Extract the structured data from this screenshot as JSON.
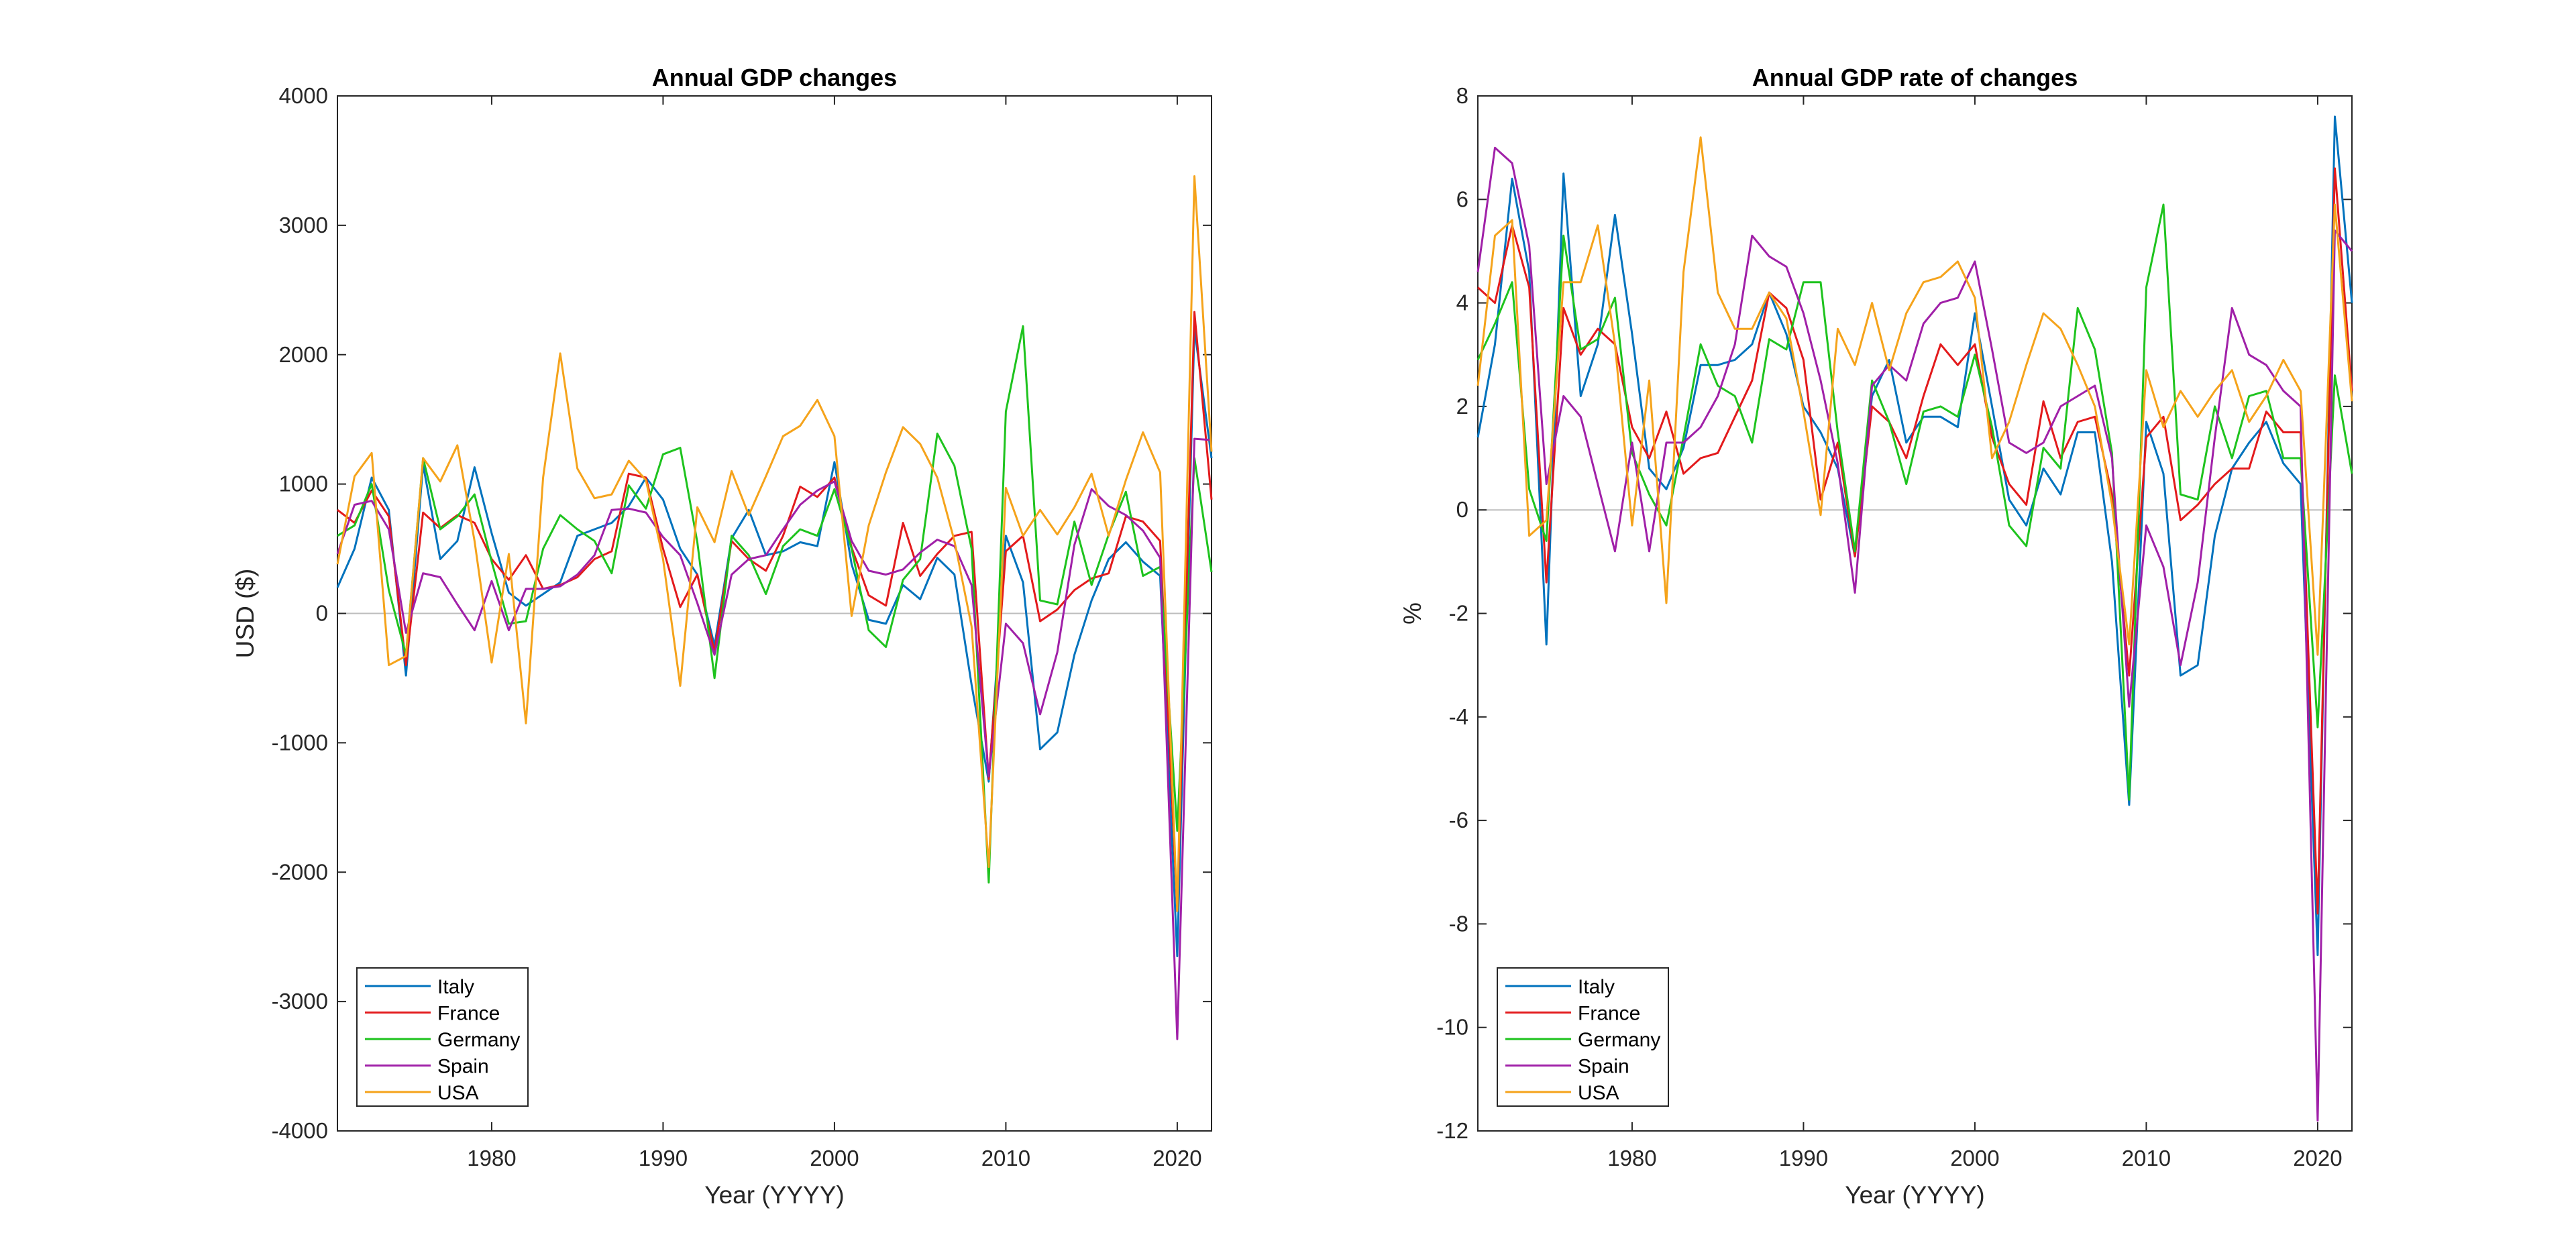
{
  "colors": {
    "Italy": "#0072BD",
    "France": "#E31A1C",
    "Germany": "#1EC31E",
    "Spain": "#A020A8",
    "USA": "#F5A31B",
    "axis": "#262626",
    "zero_line": "#BDBDBD"
  },
  "chart_data": [
    {
      "type": "line",
      "title": "Annual GDP changes",
      "xlabel": "Year (YYYY)",
      "ylabel": "USD ($)",
      "xlim": [
        1971,
        2022
      ],
      "ylim": [
        -4000,
        4000
      ],
      "xticks": [
        1980,
        1990,
        2000,
        2010,
        2020
      ],
      "yticks": [
        -4000,
        -3000,
        -2000,
        -1000,
        0,
        1000,
        2000,
        3000,
        4000
      ],
      "grid": false,
      "zero_line": true,
      "legend": "bottom-left",
      "x_start": 1971,
      "series": [
        {
          "name": "Italy",
          "values": [
            200,
            500,
            1050,
            800,
            -480,
            1150,
            420,
            560,
            1130,
            620,
            160,
            60,
            150,
            240,
            600,
            650,
            700,
            830,
            1050,
            880,
            500,
            300,
            -250,
            580,
            800,
            450,
            480,
            550,
            520,
            1170,
            380,
            -50,
            -80,
            220,
            110,
            430,
            300,
            -550,
            -1300,
            600,
            240,
            -1050,
            -920,
            -320,
            100,
            420,
            550,
            400,
            290,
            -2650,
            2200,
            1200
          ]
        },
        {
          "name": "France",
          "values": [
            800,
            700,
            950,
            750,
            -400,
            780,
            660,
            760,
            700,
            420,
            260,
            450,
            190,
            220,
            280,
            420,
            480,
            1080,
            1050,
            500,
            50,
            300,
            -300,
            560,
            420,
            330,
            600,
            980,
            900,
            1050,
            510,
            140,
            60,
            700,
            290,
            460,
            600,
            630,
            -1280,
            480,
            600,
            -60,
            30,
            180,
            270,
            310,
            750,
            710,
            560,
            -2300,
            2330,
            880
          ]
        },
        {
          "name": "Germany",
          "values": [
            600,
            680,
            1000,
            180,
            -320,
            1200,
            650,
            750,
            920,
            400,
            -80,
            -60,
            500,
            760,
            650,
            560,
            310,
            990,
            810,
            1230,
            1280,
            550,
            -500,
            600,
            450,
            150,
            520,
            650,
            600,
            960,
            500,
            -130,
            -260,
            260,
            420,
            1390,
            1140,
            500,
            -2080,
            1560,
            2220,
            100,
            70,
            710,
            220,
            610,
            940,
            290,
            360,
            -1680,
            1200,
            320
          ]
        },
        {
          "name": "Spain",
          "values": [
            460,
            840,
            870,
            650,
            -150,
            310,
            280,
            70,
            -130,
            250,
            -130,
            190,
            190,
            210,
            300,
            450,
            800,
            810,
            780,
            590,
            450,
            80,
            -320,
            300,
            420,
            450,
            650,
            840,
            950,
            1020,
            560,
            330,
            300,
            340,
            470,
            570,
            520,
            220,
            -1260,
            -80,
            -230,
            -780,
            -300,
            530,
            960,
            830,
            760,
            640,
            430,
            -3290,
            1350,
            1340
          ]
        },
        {
          "name": "USA",
          "values": [
            380,
            1060,
            1240,
            -400,
            -330,
            1200,
            1020,
            1300,
            560,
            -380,
            460,
            -850,
            1050,
            2010,
            1120,
            890,
            920,
            1180,
            1030,
            420,
            -560,
            820,
            550,
            1100,
            760,
            1060,
            1370,
            1450,
            1650,
            1370,
            -20,
            680,
            1090,
            1440,
            1310,
            1050,
            560,
            -100,
            -1960,
            970,
            600,
            800,
            610,
            820,
            1080,
            600,
            1030,
            1400,
            1090,
            -2300,
            3380,
            1250
          ]
        }
      ]
    },
    {
      "type": "line",
      "title": "Annual GDP rate of changes",
      "xlabel": "Year (YYYY)",
      "ylabel": "%",
      "xlim": [
        1971,
        2022
      ],
      "ylim": [
        -12,
        8
      ],
      "xticks": [
        1980,
        1990,
        2000,
        2010,
        2020
      ],
      "yticks": [
        -12,
        -10,
        -8,
        -6,
        -4,
        -2,
        0,
        2,
        4,
        6,
        8
      ],
      "grid": false,
      "zero_line": true,
      "legend": "bottom-left",
      "x_start": 1971,
      "series": [
        {
          "name": "Italy",
          "values": [
            1.4,
            3.2,
            6.4,
            4.6,
            -2.6,
            6.5,
            2.2,
            3.2,
            5.7,
            3.4,
            0.8,
            0.4,
            1.2,
            2.8,
            2.8,
            2.9,
            3.2,
            4.2,
            3.4,
            2.0,
            1.5,
            0.8,
            -0.9,
            2.2,
            2.9,
            1.3,
            1.8,
            1.8,
            1.6,
            3.8,
            2.0,
            0.2,
            -0.3,
            0.8,
            0.3,
            1.5,
            1.5,
            -1.0,
            -5.7,
            1.7,
            0.7,
            -3.2,
            -3.0,
            -0.5,
            0.8,
            1.3,
            1.7,
            0.9,
            0.5,
            -8.6,
            7.6,
            4.0
          ]
        },
        {
          "name": "France",
          "values": [
            4.3,
            4.0,
            5.5,
            4.3,
            -1.4,
            3.9,
            3.0,
            3.5,
            3.2,
            1.6,
            1.0,
            1.9,
            0.7,
            1.0,
            1.1,
            1.8,
            2.5,
            4.2,
            3.9,
            2.9,
            0.2,
            1.3,
            -0.9,
            2.0,
            1.7,
            1.0,
            2.2,
            3.2,
            2.8,
            3.2,
            1.4,
            0.5,
            0.1,
            2.1,
            1.0,
            1.7,
            1.8,
            0.3,
            -3.2,
            1.4,
            1.8,
            -0.2,
            0.1,
            0.5,
            0.8,
            0.8,
            1.9,
            1.5,
            1.5,
            -7.8,
            6.6,
            2.3
          ]
        },
        {
          "name": "Germany",
          "values": [
            2.9,
            3.6,
            4.4,
            0.4,
            -0.6,
            5.3,
            3.1,
            3.3,
            4.1,
            1.1,
            0.3,
            -0.3,
            1.4,
            3.2,
            2.4,
            2.2,
            1.3,
            3.3,
            3.1,
            4.4,
            4.4,
            1.5,
            -0.8,
            2.5,
            1.7,
            0.5,
            1.9,
            2.0,
            1.8,
            3.0,
            1.6,
            -0.3,
            -0.7,
            1.2,
            0.8,
            3.9,
            3.1,
            1.1,
            -5.6,
            4.3,
            5.9,
            0.3,
            0.2,
            2.0,
            1.0,
            2.2,
            2.3,
            1.0,
            1.0,
            -4.2,
            2.6,
            0.7
          ]
        },
        {
          "name": "Spain",
          "values": [
            4.6,
            7.0,
            6.7,
            5.1,
            0.5,
            2.2,
            1.8,
            0.5,
            -0.8,
            1.3,
            -0.8,
            1.3,
            1.3,
            1.6,
            2.2,
            3.2,
            5.3,
            4.9,
            4.7,
            3.8,
            2.5,
            0.9,
            -1.6,
            2.4,
            2.8,
            2.5,
            3.6,
            4.0,
            4.1,
            4.8,
            3.1,
            1.3,
            1.1,
            1.3,
            2.0,
            2.2,
            2.4,
            1.0,
            -3.8,
            -0.3,
            -1.1,
            -3.0,
            -1.4,
            1.4,
            3.9,
            3.0,
            2.8,
            2.3,
            2.0,
            -11.8,
            5.4,
            5.0
          ]
        },
        {
          "name": "USA",
          "values": [
            2.4,
            5.3,
            5.6,
            -0.5,
            -0.2,
            4.4,
            4.4,
            5.5,
            3.2,
            -0.3,
            2.5,
            -1.8,
            4.6,
            7.2,
            4.2,
            3.5,
            3.5,
            4.2,
            3.7,
            1.9,
            -0.1,
            3.5,
            2.8,
            4.0,
            2.7,
            3.8,
            4.4,
            4.5,
            4.8,
            4.1,
            1.0,
            1.7,
            2.8,
            3.8,
            3.5,
            2.8,
            2.0,
            0.1,
            -2.6,
            2.7,
            1.6,
            2.3,
            1.8,
            2.3,
            2.7,
            1.7,
            2.2,
            2.9,
            2.3,
            -2.8,
            5.9,
            2.1
          ]
        }
      ]
    }
  ]
}
